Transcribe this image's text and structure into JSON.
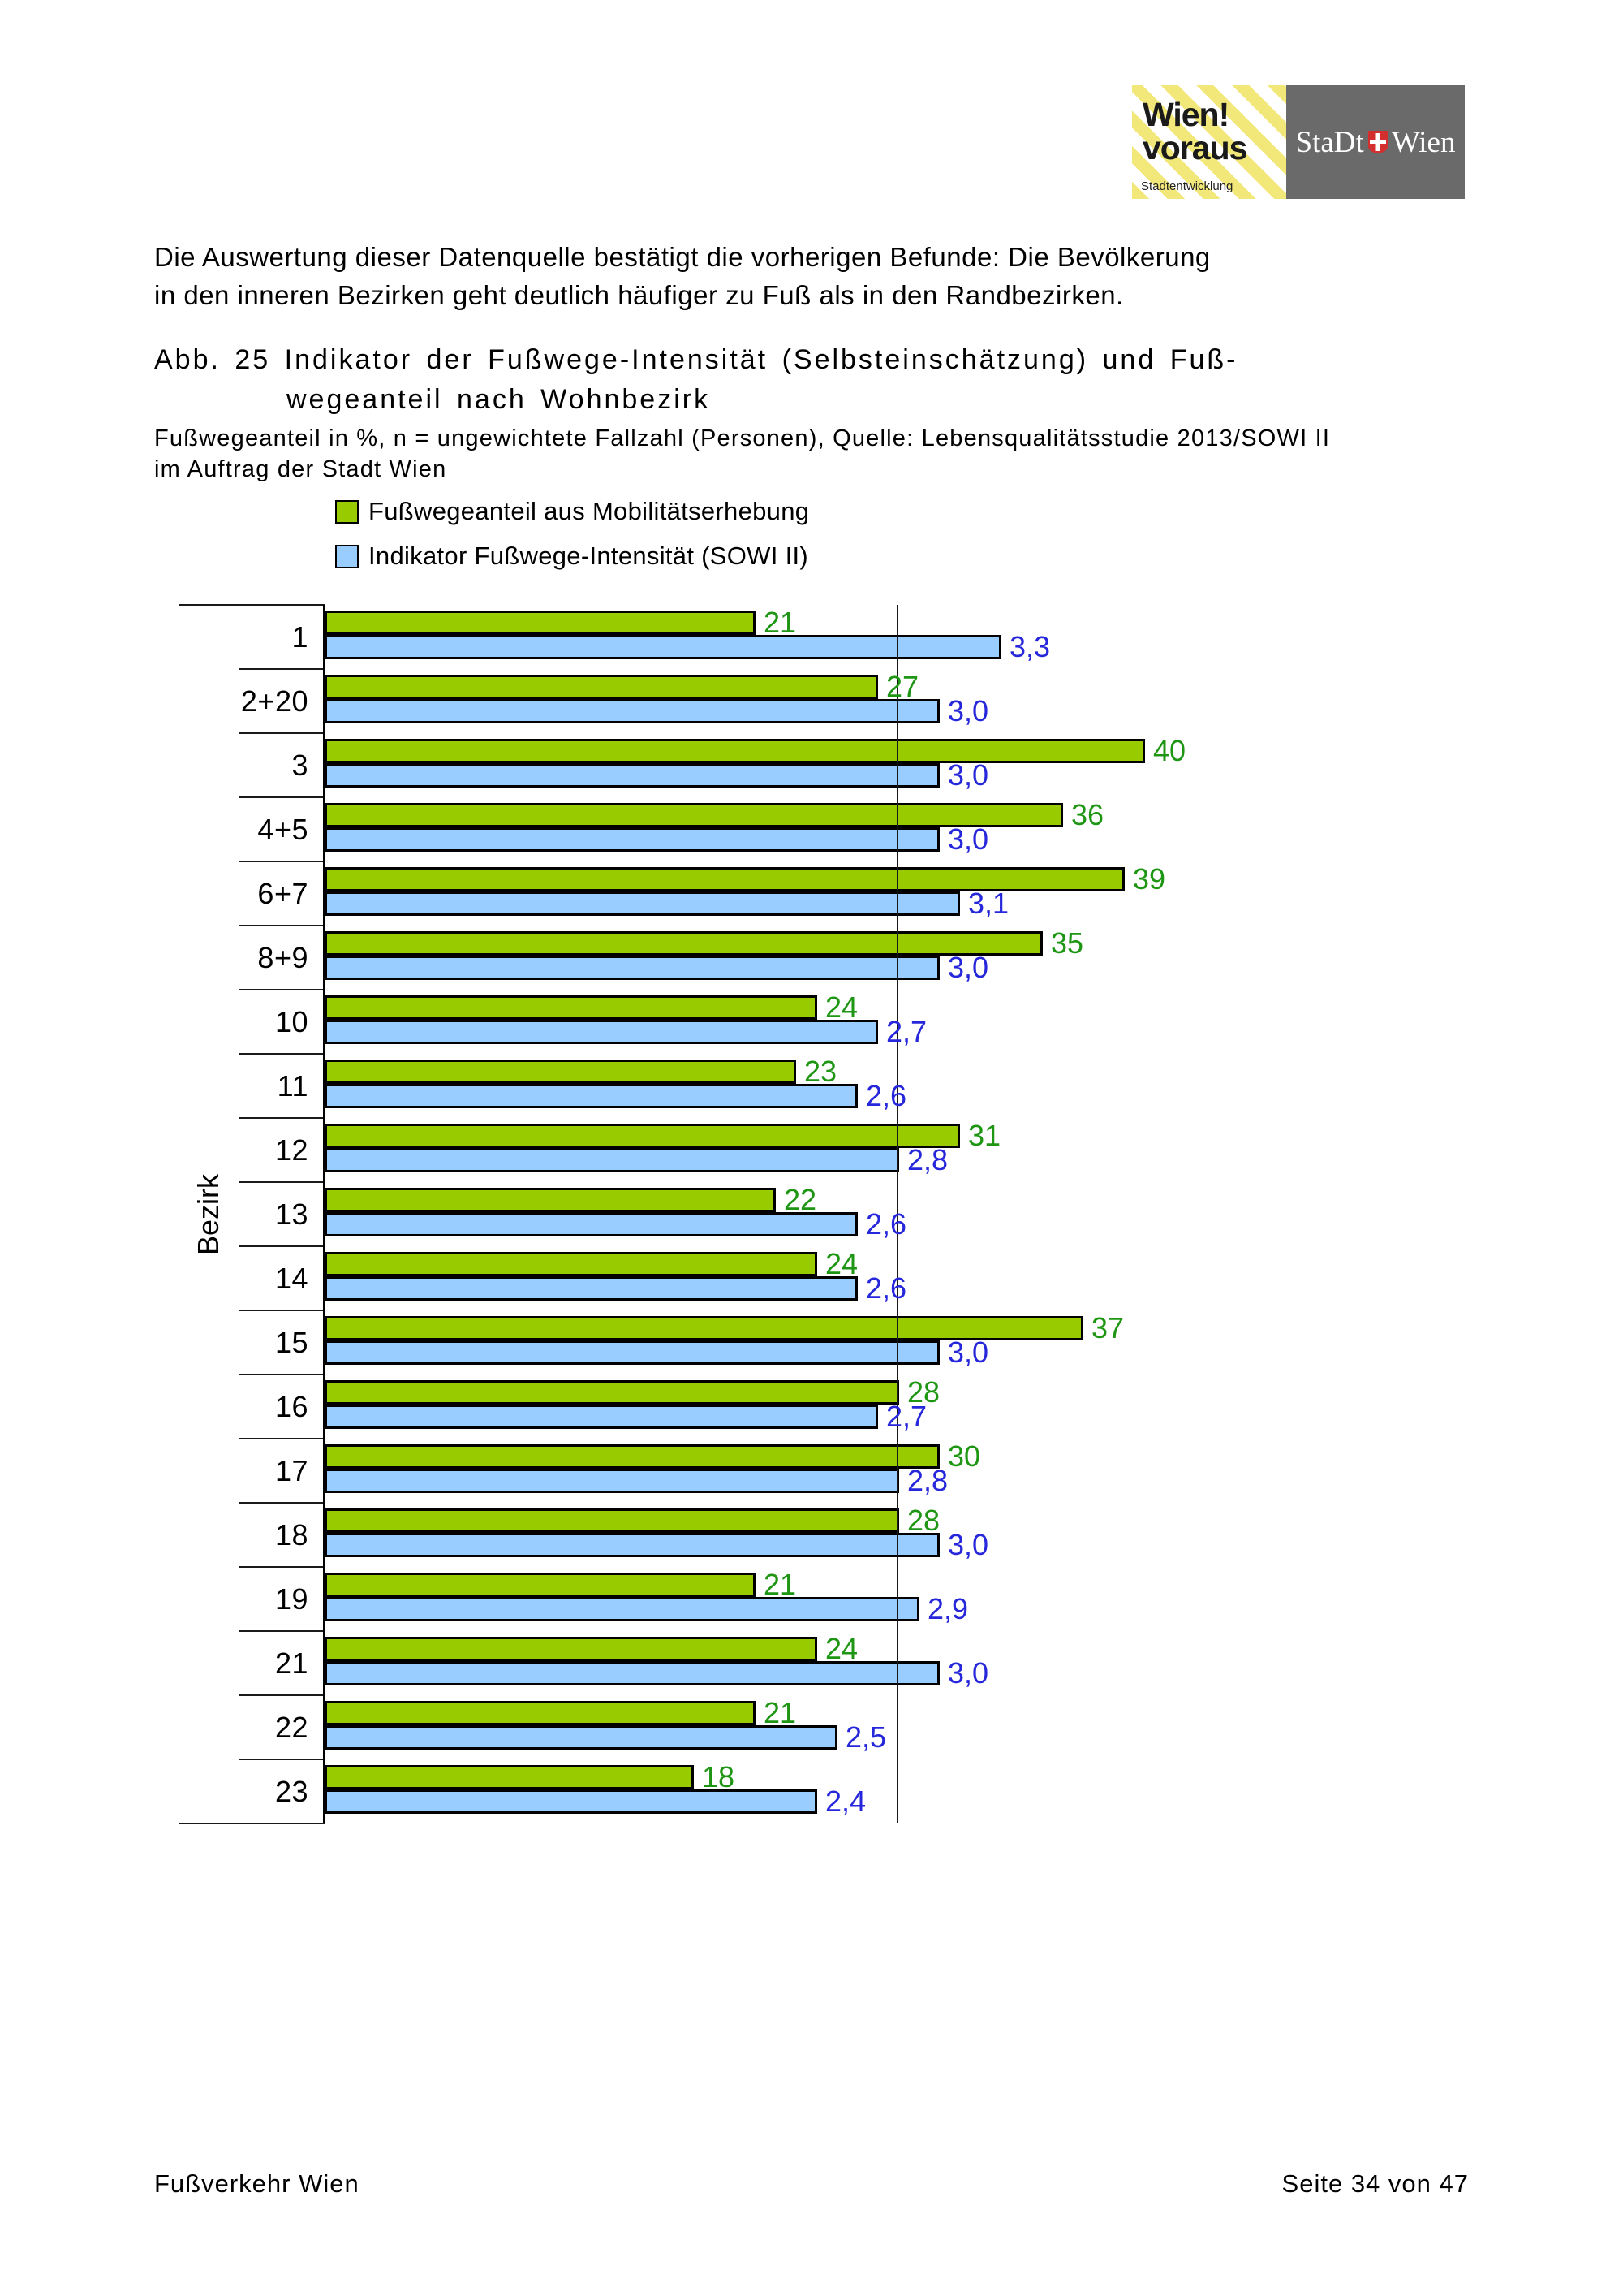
{
  "logo": {
    "brand_line1": "Wien!",
    "brand_line2": "voraus",
    "brand_sub": "Stadtentwicklung",
    "city_left": "StaDt",
    "city_right": "Wien",
    "shield_color": "#d32f2f",
    "gray_box_color": "#6a6a6a",
    "stripe_yellow": "#f2e87a"
  },
  "paragraph": {
    "line1": "Die Auswertung dieser Datenquelle bestätigt die vorherigen Befunde: Die Bevölkerung",
    "line2": "in den inneren Bezirken geht deutlich häufiger zu Fuß als in den Randbezirken."
  },
  "figure": {
    "heading_line1": "Abb. 25 Indikator der Fußwege-Intensität (Selbsteinschätzung) und Fuß-",
    "heading_line2": "wegeanteil nach Wohnbezirk",
    "subtitle_line1": "Fußwegeanteil in %, n = ungewichtete Fallzahl (Personen), Quelle: Lebensqualitätsstudie 2013/SOWI II",
    "subtitle_line2": "im Auftrag der Stadt Wien"
  },
  "chart_data": {
    "type": "bar",
    "orientation": "horizontal",
    "title": "Abb. 25 Indikator der Fußwege-Intensität (Selbsteinschätzung) und Fußwegeanteil nach Wohnbezirk",
    "ylabel": "Bezirk",
    "xlabel": "",
    "grid": false,
    "legend_position": "top-left above plot",
    "categories": [
      "1",
      "2+20",
      "3",
      "4+5",
      "6+7",
      "8+9",
      "10",
      "11",
      "12",
      "13",
      "14",
      "15",
      "16",
      "17",
      "18",
      "19",
      "21",
      "22",
      "23"
    ],
    "series": [
      {
        "name": "Fußwegeanteil aus Mobilitätserhebung",
        "color": "#99CC00",
        "label_color": "#1E9614",
        "axis_range": [
          0,
          55
        ],
        "values": [
          21,
          27,
          40,
          36,
          39,
          35,
          24,
          23,
          31,
          22,
          24,
          37,
          28,
          30,
          28,
          21,
          24,
          21,
          18
        ],
        "labels": [
          "21",
          "27",
          "40",
          "36",
          "39",
          "35",
          "24",
          "23",
          "31",
          "22",
          "24",
          "37",
          "28",
          "30",
          "28",
          "21",
          "24",
          "21",
          "18"
        ]
      },
      {
        "name": "Indikator Fußwege-Intensität (SOWI II)",
        "color": "#99CCFF",
        "label_color": "#2626DB",
        "axis_range": [
          0,
          5.5
        ],
        "values": [
          3.3,
          3.0,
          3.0,
          3.0,
          3.1,
          3.0,
          2.7,
          2.6,
          2.8,
          2.6,
          2.6,
          3.0,
          2.7,
          2.8,
          3.0,
          2.9,
          3.0,
          2.5,
          2.4
        ],
        "labels": [
          "3,3",
          "3,0",
          "3,0",
          "3,0",
          "3,1",
          "3,0",
          "2,7",
          "2,6",
          "2,8",
          "2,6",
          "2,6",
          "3,0",
          "2,7",
          "2,8",
          "3,0",
          "2,9",
          "3,0",
          "2,5",
          "2,4"
        ]
      }
    ],
    "reference_line_fraction": 0.507
  },
  "footer": {
    "left": "Fußverkehr Wien",
    "right": "Seite 34 von 47"
  }
}
